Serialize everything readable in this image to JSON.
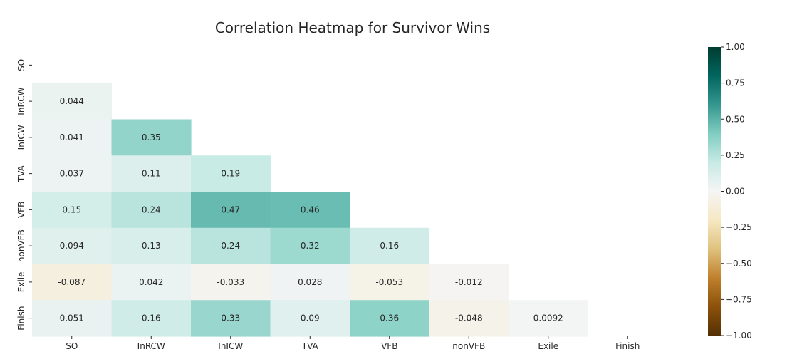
{
  "chart_data": {
    "type": "heatmap",
    "title": "Correlation Heatmap for Survivor Wins",
    "xlabel": "",
    "ylabel": "",
    "variables": [
      "SO",
      "InRCW",
      "InICW",
      "TVA",
      "VFB",
      "nonVFB",
      "Exile",
      "Finish"
    ],
    "mask": "upper-triangle-including-diagonal",
    "matrix": [
      [
        null,
        null,
        null,
        null,
        null,
        null,
        null,
        null
      ],
      [
        0.044,
        null,
        null,
        null,
        null,
        null,
        null,
        null
      ],
      [
        0.041,
        0.35,
        null,
        null,
        null,
        null,
        null,
        null
      ],
      [
        0.037,
        0.11,
        0.19,
        null,
        null,
        null,
        null,
        null
      ],
      [
        0.15,
        0.24,
        0.47,
        0.46,
        null,
        null,
        null,
        null
      ],
      [
        0.094,
        0.13,
        0.24,
        0.32,
        0.16,
        null,
        null,
        null
      ],
      [
        -0.087,
        0.042,
        -0.033,
        0.028,
        -0.053,
        -0.012,
        null,
        null
      ],
      [
        0.051,
        0.16,
        0.33,
        0.09,
        0.36,
        -0.048,
        0.0092,
        null
      ]
    ],
    "cell_labels": [
      [],
      [
        "0.044"
      ],
      [
        "0.041",
        "0.35"
      ],
      [
        "0.037",
        "0.11",
        "0.19"
      ],
      [
        "0.15",
        "0.24",
        "0.47",
        "0.46"
      ],
      [
        "0.094",
        "0.13",
        "0.24",
        "0.32",
        "0.16"
      ],
      [
        "-0.087",
        "0.042",
        "-0.033",
        "0.028",
        "-0.053",
        "-0.012"
      ],
      [
        "0.051",
        "0.16",
        "0.33",
        "0.09",
        "0.36",
        "-0.048",
        "0.0092"
      ]
    ],
    "colormap": "BrBG",
    "vmin": -1.0,
    "vmax": 1.0,
    "colorbar": {
      "ticks": [
        1.0,
        0.75,
        0.5,
        0.25,
        0.0,
        -0.25,
        -0.5,
        -0.75,
        -1.0
      ],
      "tick_labels": [
        "1.00",
        "0.75",
        "0.50",
        "0.25",
        "0.00",
        "−0.25",
        "−0.50",
        "−0.75",
        "−1.00"
      ]
    },
    "colors": {
      "text_dark": "#262626",
      "text_light": "#ffffff",
      "brbg_stops": [
        "#543005",
        "#8c510a",
        "#bf812d",
        "#dfc27d",
        "#f6e8c3",
        "#f5f5f5",
        "#c7eae5",
        "#80cdc1",
        "#35978f",
        "#01665e",
        "#003c30"
      ]
    },
    "grid": false,
    "legend": "colorbar-right"
  }
}
